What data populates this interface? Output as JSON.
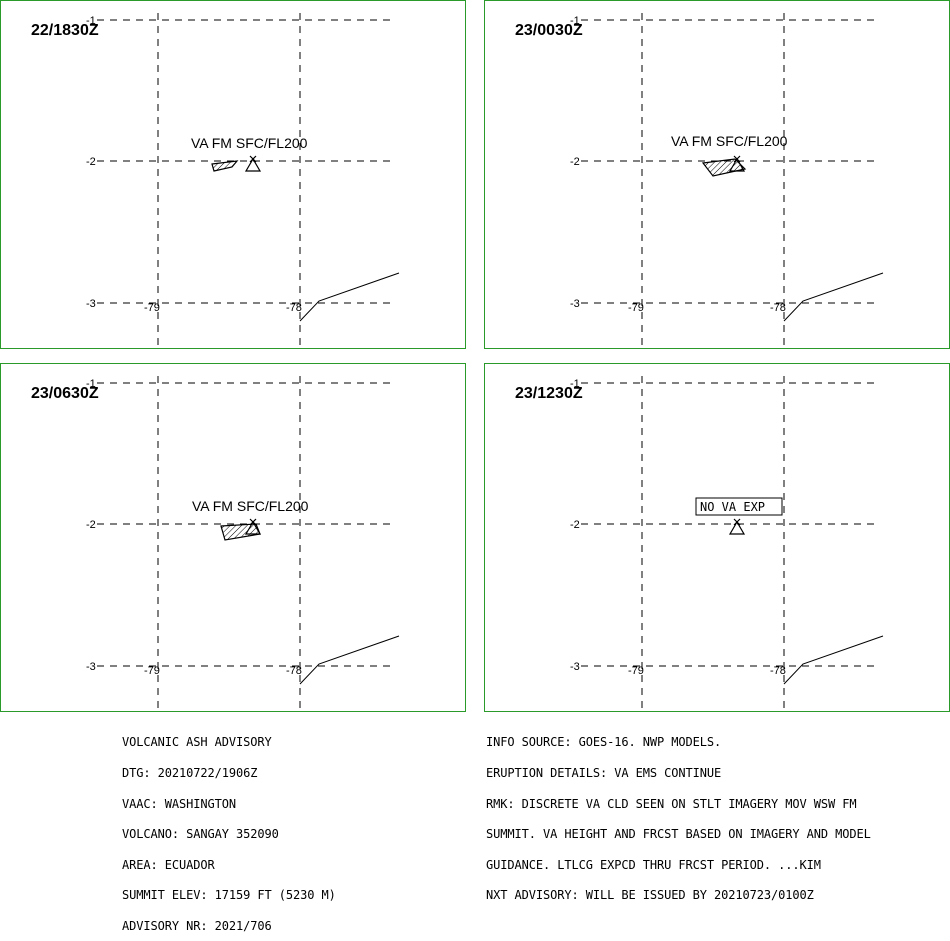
{
  "panels": [
    {
      "time": "22/1830Z",
      "label": "VA FM SFC/FL200",
      "label_style": "plain",
      "ticks": {
        "top": "-1",
        "mid": "-2",
        "bot": "-3",
        "lonA": "-79",
        "lonB": "-78"
      }
    },
    {
      "time": "23/0030Z",
      "label": "VA FM SFC/FL200",
      "label_style": "plain",
      "ticks": {
        "top": "-1",
        "mid": "-2",
        "bot": "-3",
        "lonA": "-79",
        "lonB": "-78"
      }
    },
    {
      "time": "23/0630Z",
      "label": "VA FM SFC/FL200",
      "label_style": "plain",
      "ticks": {
        "top": "-1",
        "mid": "-2",
        "bot": "-3",
        "lonA": "-79",
        "lonB": "-78"
      }
    },
    {
      "time": "23/1230Z",
      "label": "NO VA EXP",
      "label_style": "boxed",
      "ticks": {
        "top": "-1",
        "mid": "-2",
        "bot": "-3",
        "lonA": "-79",
        "lonB": "-78"
      }
    }
  ],
  "advisory_left": [
    "VOLCANIC ASH ADVISORY",
    "DTG: 20210722/1906Z",
    "VAAC: WASHINGTON",
    "VOLCANO: SANGAY 352090",
    "AREA: ECUADOR",
    "SUMMIT ELEV: 17159 FT (5230 M)",
    "ADVISORY NR: 2021/706"
  ],
  "advisory_right": [
    "INFO SOURCE: GOES-16. NWP MODELS.",
    "ERUPTION DETAILS: VA EMS CONTINUE",
    "RMK: DISCRETE VA CLD SEEN ON STLT IMAGERY MOV WSW FM",
    "SUMMIT. VA HEIGHT AND FRCST BASED ON IMAGERY AND MODEL",
    "GUIDANCE. LTLCG EXPCD THRU FRCST PERIOD. ...KIM",
    "NXT ADVISORY: WILL BE ISSUED BY 20210723/0100Z"
  ],
  "colors": {
    "frame": "#2a9a2a",
    "ink": "#000000"
  },
  "icons": {
    "volcano": "volcano-triangle-icon",
    "ash": "ash-polygon-hatched"
  }
}
